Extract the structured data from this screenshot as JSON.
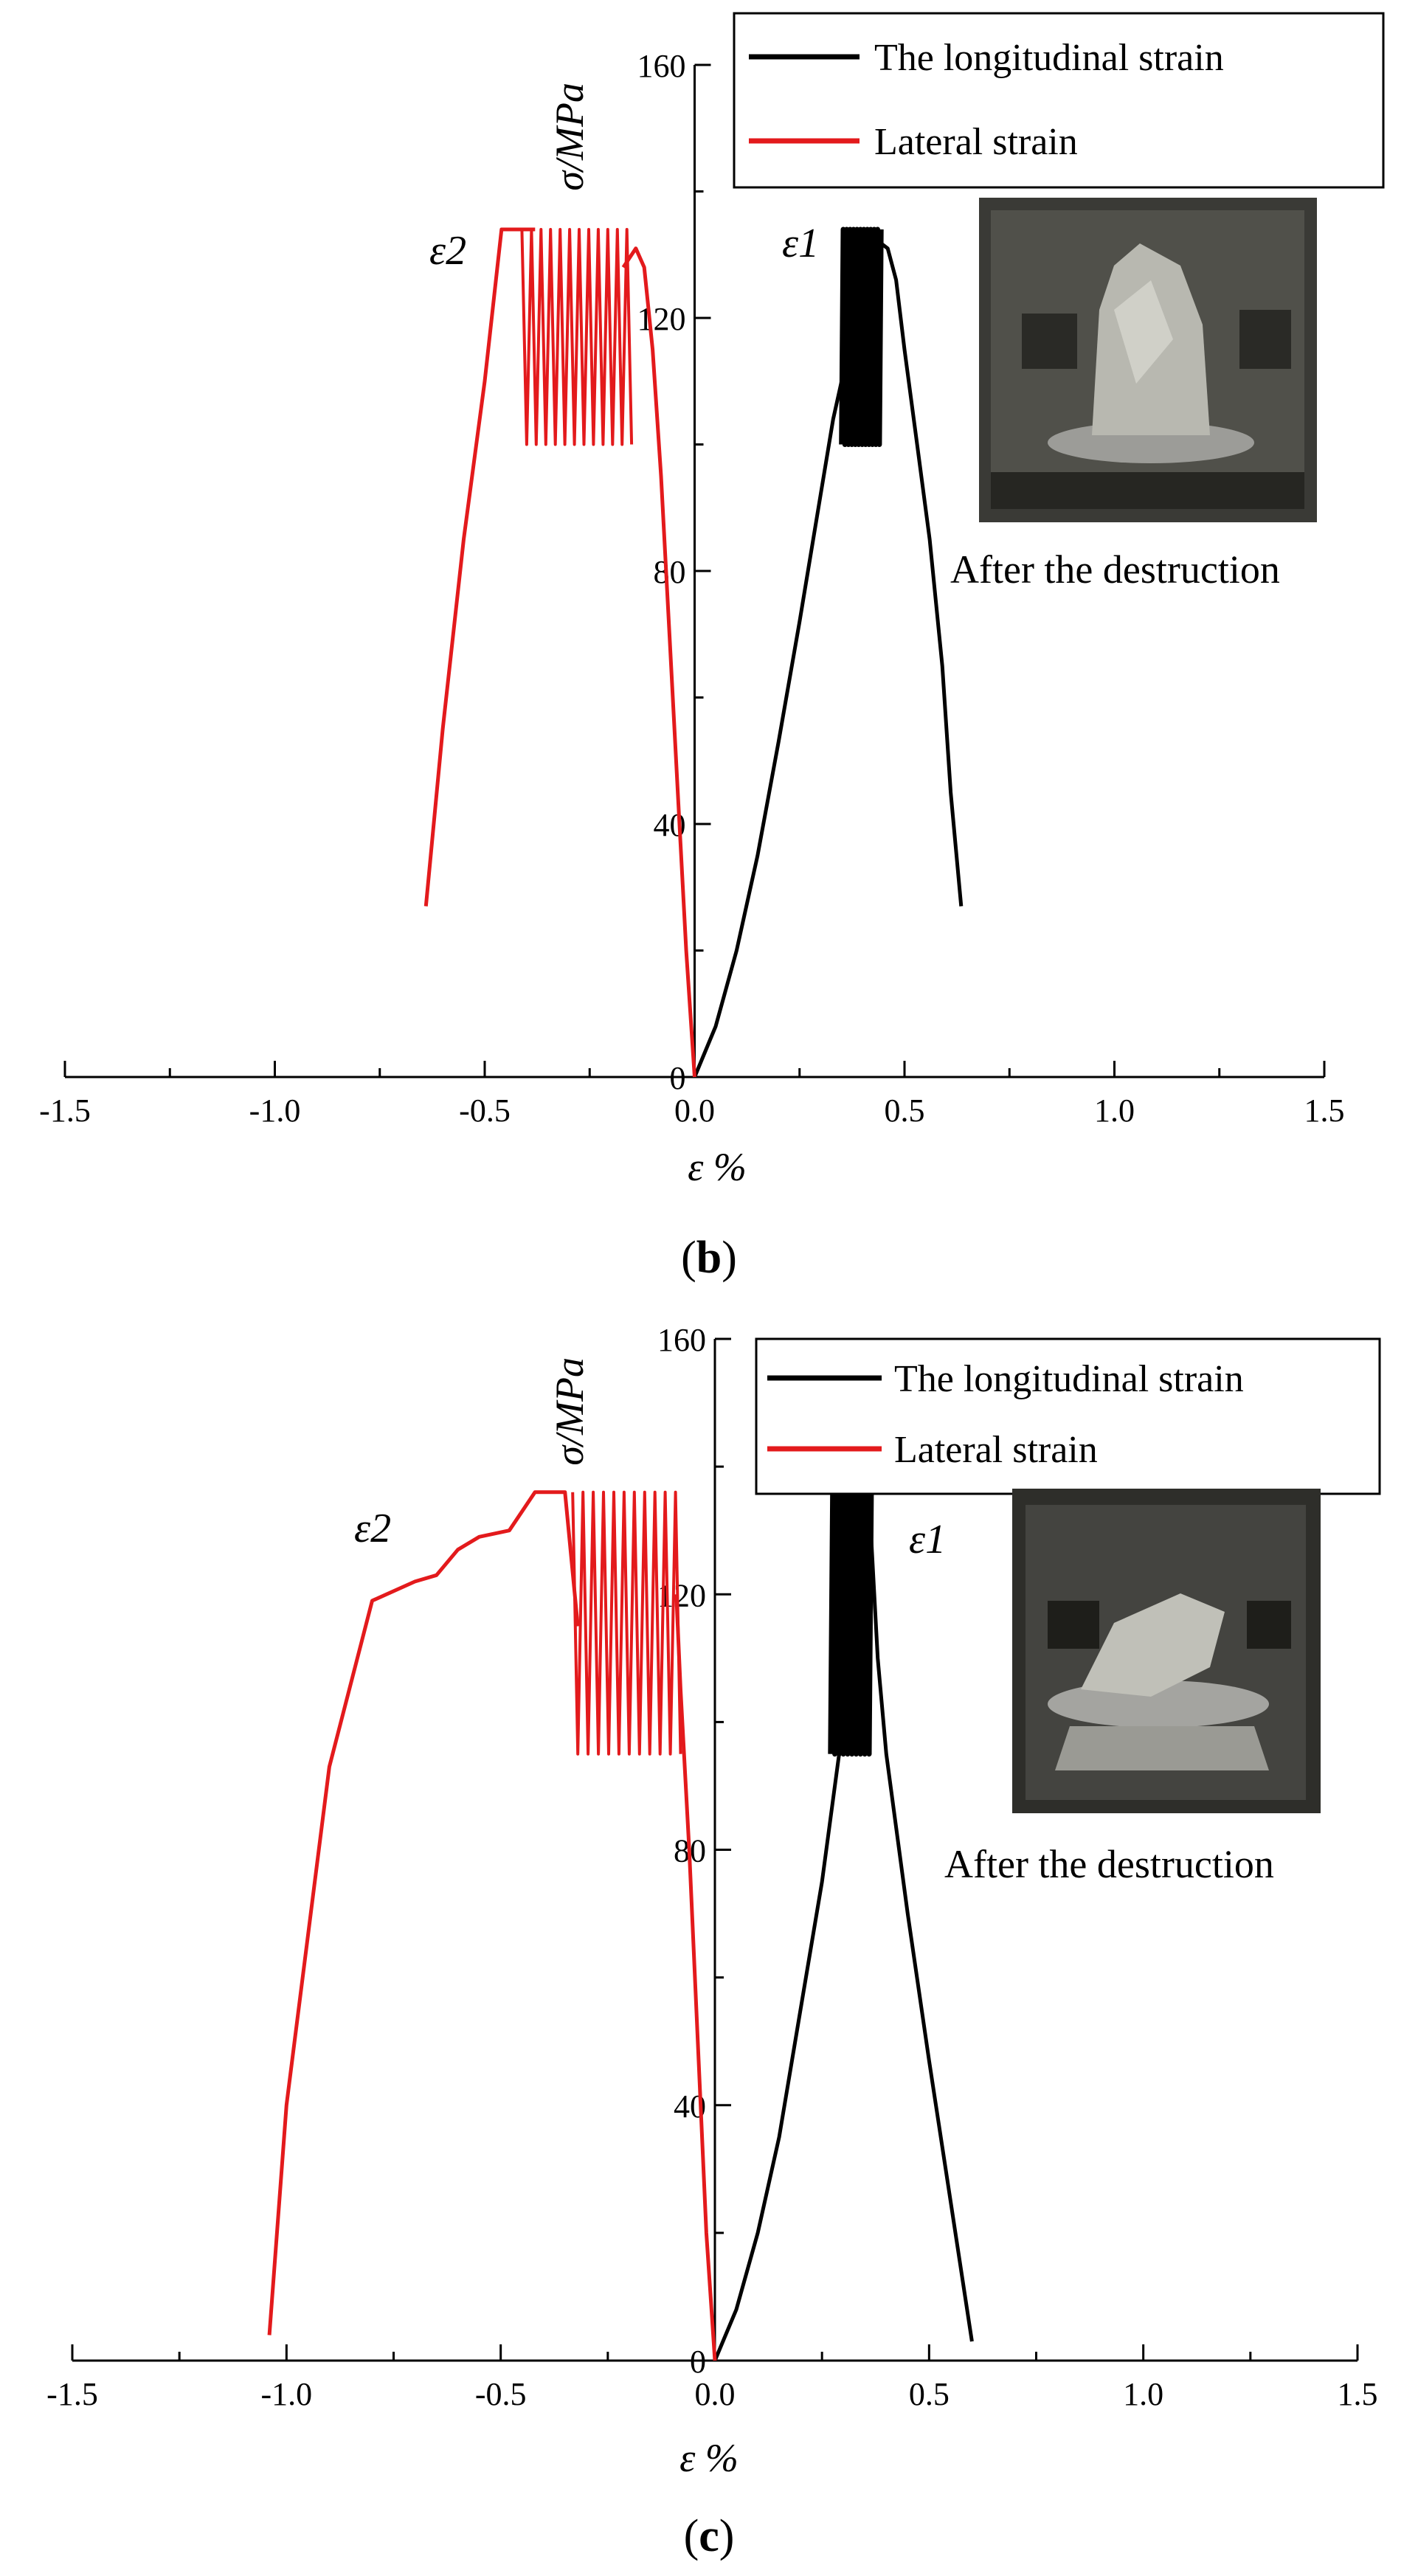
{
  "chart_data": [
    {
      "type": "line",
      "panel_label": "(b)",
      "panel_letter": "b",
      "xlabel": "ε %",
      "ylabel": "σ/MPa",
      "xlim": [
        -1.5,
        1.5
      ],
      "ylim": [
        0,
        160
      ],
      "x_ticks": [
        "-1.5",
        "-1.0",
        "-0.5",
        "0.0",
        "0.5",
        "1.0",
        "1.5"
      ],
      "y_ticks": [
        "0",
        "40",
        "80",
        "120",
        "160"
      ],
      "legend_position": "top-right",
      "series": [
        {
          "name": "The longitudinal strain",
          "color": "#000000",
          "label": "ε1",
          "points": [
            [
              0.0,
              0
            ],
            [
              0.05,
              8
            ],
            [
              0.1,
              20
            ],
            [
              0.15,
              35
            ],
            [
              0.2,
              53
            ],
            [
              0.25,
              72
            ],
            [
              0.3,
              92
            ],
            [
              0.33,
              104
            ],
            [
              0.35,
              110
            ],
            [
              0.37,
              118
            ],
            [
              0.4,
              126
            ],
            [
              0.42,
              130
            ],
            [
              0.44,
              132
            ],
            [
              0.46,
              131
            ],
            [
              0.48,
              126
            ],
            [
              0.5,
              115
            ],
            [
              0.53,
              100
            ],
            [
              0.56,
              85
            ],
            [
              0.59,
              65
            ],
            [
              0.61,
              45
            ],
            [
              0.635,
              27
            ]
          ],
          "cycles": {
            "x_start": 0.35,
            "x_end": 0.44,
            "y_low": 100,
            "y_high": 134,
            "count": 11
          }
        },
        {
          "name": "Lateral strain",
          "color": "#e31a1c",
          "label": "ε2",
          "points": [
            [
              0.0,
              0
            ],
            [
              -0.02,
              20
            ],
            [
              -0.04,
              45
            ],
            [
              -0.06,
              70
            ],
            [
              -0.08,
              95
            ],
            [
              -0.1,
              115
            ],
            [
              -0.12,
              128
            ],
            [
              -0.14,
              131
            ],
            [
              -0.17,
              128
            ]
          ],
          "cycles": {
            "x_start": -0.15,
            "x_end": -0.4,
            "y_low": 100,
            "y_high": 134,
            "count": 11
          },
          "tail_points": [
            [
              -0.38,
              134
            ],
            [
              -0.42,
              134
            ],
            [
              -0.46,
              134
            ],
            [
              -0.5,
              110
            ],
            [
              -0.55,
              85
            ],
            [
              -0.6,
              55
            ],
            [
              -0.64,
              27
            ]
          ]
        }
      ],
      "photo_caption": "After the destruction"
    },
    {
      "type": "line",
      "panel_label": "(c)",
      "panel_letter": "c",
      "xlabel": "ε %",
      "ylabel": "σ/MPa",
      "xlim": [
        -1.5,
        1.5
      ],
      "ylim": [
        0,
        160
      ],
      "x_ticks": [
        "-1.5",
        "-1.0",
        "-0.5",
        "0.0",
        "0.5",
        "1.0",
        "1.5"
      ],
      "y_ticks": [
        "0",
        "40",
        "80",
        "120",
        "160"
      ],
      "legend_position": "top-right",
      "series": [
        {
          "name": "The longitudinal strain",
          "color": "#000000",
          "label": "ε1",
          "points": [
            [
              0.0,
              0
            ],
            [
              0.05,
              8
            ],
            [
              0.1,
              20
            ],
            [
              0.15,
              35
            ],
            [
              0.2,
              55
            ],
            [
              0.25,
              75
            ],
            [
              0.28,
              90
            ],
            [
              0.3,
              100
            ],
            [
              0.33,
              115
            ],
            [
              0.35,
              133
            ],
            [
              0.36,
              135
            ],
            [
              0.38,
              110
            ],
            [
              0.4,
              95
            ],
            [
              0.45,
              70
            ],
            [
              0.5,
              47
            ],
            [
              0.55,
              25
            ],
            [
              0.6,
              3
            ]
          ],
          "cycles": {
            "x_start": 0.27,
            "x_end": 0.36,
            "y_low": 95,
            "y_high": 136,
            "count": 9
          }
        },
        {
          "name": "Lateral strain",
          "color": "#e31a1c",
          "label": "ε2",
          "points": [
            [
              0.0,
              0
            ],
            [
              -0.02,
              20
            ],
            [
              -0.04,
              50
            ],
            [
              -0.06,
              80
            ],
            [
              -0.08,
              105
            ],
            [
              -0.09,
              120
            ]
          ],
          "cycles": {
            "x_start": -0.08,
            "x_end": -0.32,
            "y_low": 95,
            "y_high": 136,
            "count": 10
          },
          "tail_points": [
            [
              -0.32,
              115
            ],
            [
              -0.35,
              136
            ],
            [
              -0.42,
              136
            ],
            [
              -0.48,
              130
            ],
            [
              -0.55,
              129
            ],
            [
              -0.6,
              127
            ],
            [
              -0.65,
              123
            ],
            [
              -0.7,
              122
            ],
            [
              -0.8,
              119
            ],
            [
              -0.9,
              93
            ],
            [
              -1.0,
              40
            ],
            [
              -1.04,
              4
            ]
          ]
        }
      ],
      "photo_caption": "After the destruction"
    }
  ]
}
